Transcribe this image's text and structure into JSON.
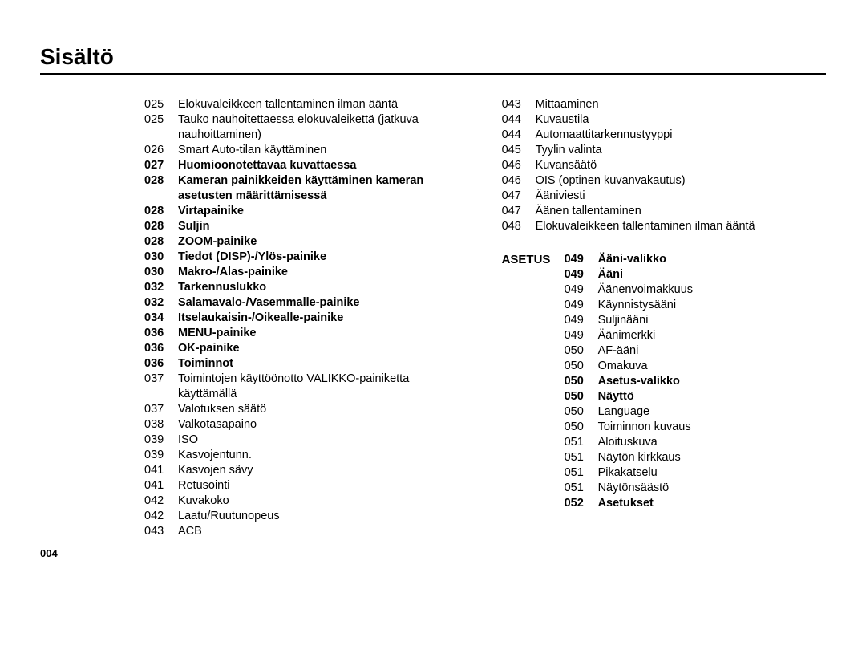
{
  "title": "Sisältö",
  "page_number": "004",
  "typography": {
    "title_fontsize": 28,
    "body_fontsize": 14.5,
    "line_height": 19
  },
  "colors": {
    "text": "#000000",
    "background": "#ffffff",
    "rule": "#000000"
  },
  "left_column": [
    {
      "num": "025",
      "text": "Elokuvaleikkeen tallentaminen ilman ääntä",
      "bold": false
    },
    {
      "num": "025",
      "text": "Tauko nauhoitettaessa elokuvaleikettä (jatkuva nauhoittaminen)",
      "bold": false
    },
    {
      "num": "026",
      "text": "Smart Auto-tilan käyttäminen",
      "bold": false
    },
    {
      "num": "027",
      "text": "Huomioonotettavaa kuvattaessa",
      "bold": true
    },
    {
      "num": "028",
      "text": "Kameran painikkeiden käyttäminen kameran asetusten määrittämisessä",
      "bold": true
    },
    {
      "num": "028",
      "text": "Virtapainike",
      "bold": true
    },
    {
      "num": "028",
      "text": "Suljin",
      "bold": true
    },
    {
      "num": "028",
      "text": "ZOOM-painike",
      "bold": true
    },
    {
      "num": "030",
      "text": "Tiedot (DISP)-/Ylös-painike",
      "bold": true
    },
    {
      "num": "030",
      "text": "Makro-/Alas-painike",
      "bold": true
    },
    {
      "num": "032",
      "text": "Tarkennuslukko",
      "bold": true
    },
    {
      "num": "032",
      "text": "Salamavalo-/Vasemmalle-painike",
      "bold": true
    },
    {
      "num": "034",
      "text": "Itselaukaisin-/Oikealle-painike",
      "bold": true
    },
    {
      "num": "036",
      "text": "MENU-painike",
      "bold": true
    },
    {
      "num": "036",
      "text": "OK-painike",
      "bold": true
    },
    {
      "num": "036",
      "text": "Toiminnot",
      "bold": true
    },
    {
      "num": "037",
      "text": "Toimintojen käyttöönotto VALIKKO-painiketta käyttämällä",
      "bold": false
    },
    {
      "num": "037",
      "text": "Valotuksen säätö",
      "bold": false
    },
    {
      "num": "038",
      "text": "Valkotasapaino",
      "bold": false
    },
    {
      "num": "039",
      "text": "ISO",
      "bold": false
    },
    {
      "num": "039",
      "text": "Kasvojentunn.",
      "bold": false
    },
    {
      "num": "041",
      "text": "Kasvojen sävy",
      "bold": false
    },
    {
      "num": "041",
      "text": "Retusointi",
      "bold": false
    },
    {
      "num": "042",
      "text": "Kuvakoko",
      "bold": false
    },
    {
      "num": "042",
      "text": "Laatu/Ruutunopeus",
      "bold": false
    },
    {
      "num": "043",
      "text": "ACB",
      "bold": false
    }
  ],
  "right_top": [
    {
      "num": "043",
      "text": "Mittaaminen",
      "bold": false
    },
    {
      "num": "044",
      "text": "Kuvaustila",
      "bold": false
    },
    {
      "num": "044",
      "text": "Automaattitarkennustyyppi",
      "bold": false
    },
    {
      "num": "045",
      "text": "Tyylin valinta",
      "bold": false
    },
    {
      "num": "046",
      "text": "Kuvansäätö",
      "bold": false
    },
    {
      "num": "046",
      "text": "OIS (optinen kuvanvakautus)",
      "bold": false
    },
    {
      "num": "047",
      "text": "Ääniviesti",
      "bold": false
    },
    {
      "num": "047",
      "text": "Äänen tallentaminen",
      "bold": false
    },
    {
      "num": "048",
      "text": "Elokuvaleikkeen tallentaminen ilman ääntä",
      "bold": false
    }
  ],
  "right_section": {
    "label": "ASETUS",
    "entries": [
      {
        "num": "049",
        "text": "Ääni-valikko",
        "bold": true
      },
      {
        "num": "049",
        "text": "Ääni",
        "bold": true
      },
      {
        "num": "049",
        "text": "Äänenvoimakkuus",
        "bold": false
      },
      {
        "num": "049",
        "text": "Käynnistysääni",
        "bold": false
      },
      {
        "num": "049",
        "text": "Suljinääni",
        "bold": false
      },
      {
        "num": "049",
        "text": "Äänimerkki",
        "bold": false
      },
      {
        "num": "050",
        "text": "AF-ääni",
        "bold": false
      },
      {
        "num": "050",
        "text": "Omakuva",
        "bold": false
      },
      {
        "num": "050",
        "text": "Asetus-valikko",
        "bold": true
      },
      {
        "num": "050",
        "text": "Näyttö",
        "bold": true
      },
      {
        "num": "050",
        "text": "Language",
        "bold": false
      },
      {
        "num": "050",
        "text": "Toiminnon kuvaus",
        "bold": false
      },
      {
        "num": "051",
        "text": "Aloituskuva",
        "bold": false
      },
      {
        "num": "051",
        "text": "Näytön kirkkaus",
        "bold": false
      },
      {
        "num": "051",
        "text": "Pikakatselu",
        "bold": false
      },
      {
        "num": "051",
        "text": "Näytönsäästö",
        "bold": false
      },
      {
        "num": "052",
        "text": "Asetukset",
        "bold": true
      }
    ]
  }
}
